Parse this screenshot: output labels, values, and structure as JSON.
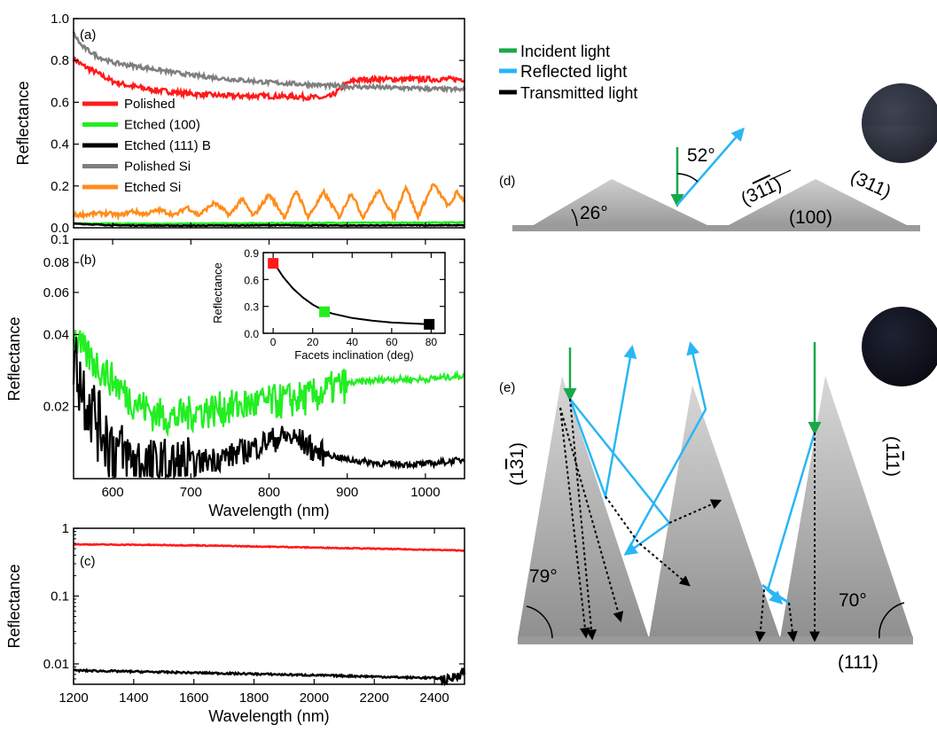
{
  "chart_data": [
    {
      "panel": "(a)",
      "type": "line",
      "xlabel": "",
      "ylabel": "Reflectance",
      "xlim": [
        550,
        1050
      ],
      "ylim": [
        0,
        1.0
      ],
      "yticks": [
        "0.0",
        "0.2",
        "0.4",
        "0.6",
        "0.8",
        "1.0"
      ],
      "series": [
        {
          "name": "Polished",
          "color": "#ff1a1a",
          "x": [
            550,
            560,
            580,
            600,
            620,
            650,
            700,
            750,
            800,
            850,
            870,
            880,
            890,
            900,
            910,
            930,
            950,
            1000,
            1050
          ],
          "y": [
            0.81,
            0.78,
            0.74,
            0.7,
            0.68,
            0.66,
            0.64,
            0.63,
            0.63,
            0.625,
            0.62,
            0.63,
            0.66,
            0.69,
            0.705,
            0.71,
            0.71,
            0.71,
            0.71
          ]
        },
        {
          "name": "Etched (100)",
          "color": "#22ee22",
          "x": [
            550,
            600,
            700,
            800,
            900,
            1000,
            1050
          ],
          "y": [
            0.02,
            0.02,
            0.02,
            0.022,
            0.024,
            0.025,
            0.026
          ]
        },
        {
          "name": "Etched (111) B",
          "color": "#000000",
          "x": [
            550,
            600,
            700,
            800,
            900,
            1000,
            1050
          ],
          "y": [
            0.02,
            0.012,
            0.01,
            0.012,
            0.011,
            0.012,
            0.012
          ]
        },
        {
          "name": "Polished Si",
          "color": "#7f7f7f",
          "x": [
            550,
            560,
            580,
            600,
            650,
            700,
            750,
            800,
            850,
            900,
            950,
            1000,
            1050
          ],
          "y": [
            0.93,
            0.87,
            0.82,
            0.79,
            0.76,
            0.73,
            0.71,
            0.695,
            0.685,
            0.675,
            0.67,
            0.665,
            0.66
          ]
        },
        {
          "name": "Etched Si",
          "color": "#ff8c1a",
          "x": [
            550,
            570,
            590,
            610,
            625,
            640,
            660,
            680,
            695,
            710,
            730,
            750,
            765,
            780,
            800,
            820,
            835,
            850,
            870,
            890,
            905,
            920,
            940,
            960,
            975,
            990,
            1010,
            1030,
            1040,
            1050
          ],
          "y": [
            0.06,
            0.065,
            0.07,
            0.06,
            0.08,
            0.065,
            0.085,
            0.06,
            0.1,
            0.06,
            0.12,
            0.06,
            0.14,
            0.055,
            0.16,
            0.05,
            0.18,
            0.05,
            0.17,
            0.05,
            0.17,
            0.05,
            0.18,
            0.05,
            0.2,
            0.05,
            0.21,
            0.1,
            0.17,
            0.13
          ]
        }
      ]
    },
    {
      "panel": "(b)",
      "type": "line",
      "xlabel": "Wavelength (nm)",
      "ylabel": "Reflectance",
      "xlim": [
        550,
        1050
      ],
      "ylim": [
        0.01,
        0.1
      ],
      "yscale": "log",
      "yticks": [
        "0.02",
        "0.04",
        "0.06",
        "0.08",
        "0.1"
      ],
      "xticks": [
        "600",
        "700",
        "800",
        "900",
        "1000"
      ],
      "series": [
        {
          "name": "Etched (100)",
          "color": "#22ee22",
          "x": [
            550,
            560,
            580,
            600,
            620,
            650,
            680,
            700,
            750,
            800,
            850,
            870,
            880,
            900,
            950,
            1000,
            1050
          ],
          "y": [
            0.04,
            0.035,
            0.03,
            0.026,
            0.022,
            0.019,
            0.018,
            0.019,
            0.02,
            0.021,
            0.022,
            0.023,
            0.024,
            0.025,
            0.026,
            0.026,
            0.027
          ]
        },
        {
          "name": "Etched (111) B",
          "color": "#000000",
          "x": [
            550,
            560,
            580,
            600,
            620,
            650,
            680,
            700,
            720,
            750,
            780,
            800,
            820,
            840,
            860,
            880,
            900,
            950,
            1000,
            1050
          ],
          "y": [
            0.035,
            0.025,
            0.018,
            0.014,
            0.012,
            0.011,
            0.011,
            0.0115,
            0.012,
            0.0125,
            0.0135,
            0.0145,
            0.015,
            0.0145,
            0.013,
            0.0125,
            0.012,
            0.0115,
            0.0115,
            0.012
          ]
        }
      ]
    },
    {
      "panel": "(b) inset",
      "type": "scatter",
      "xlabel": "Facets inclination (deg)",
      "ylabel": "Reflectance",
      "xlim": [
        -5,
        87
      ],
      "ylim": [
        0,
        0.9
      ],
      "xticks": [
        "0",
        "20",
        "40",
        "60",
        "80"
      ],
      "yticks": [
        "0.0",
        "0.3",
        "0.6",
        "0.9"
      ],
      "points": [
        {
          "x": 0,
          "y": 0.78,
          "color": "#ff1a1a"
        },
        {
          "x": 26,
          "y": 0.24,
          "color": "#22ee22"
        },
        {
          "x": 79,
          "y": 0.1,
          "color": "#000000"
        }
      ],
      "fit": {
        "x": [
          0,
          5,
          10,
          15,
          20,
          26,
          30,
          40,
          50,
          60,
          70,
          79
        ],
        "y": [
          0.8,
          0.63,
          0.5,
          0.4,
          0.32,
          0.25,
          0.22,
          0.17,
          0.14,
          0.12,
          0.11,
          0.1
        ]
      }
    },
    {
      "panel": "(c)",
      "type": "line",
      "xlabel": "Wavelength (nm)",
      "ylabel": "Reflectance",
      "xlim": [
        1200,
        2500
      ],
      "ylim": [
        0.005,
        1
      ],
      "yscale": "log",
      "yticks": [
        "0.01",
        "0.1",
        "1"
      ],
      "xticks": [
        "1200",
        "1400",
        "1600",
        "1800",
        "2000",
        "2200",
        "2400"
      ],
      "series": [
        {
          "name": "Polished",
          "color": "#ff1a1a",
          "x": [
            1200,
            1400,
            1600,
            1800,
            2000,
            2200,
            2400,
            2500
          ],
          "y": [
            0.58,
            0.57,
            0.56,
            0.54,
            0.52,
            0.5,
            0.48,
            0.47
          ]
        },
        {
          "name": "Etched (111) B",
          "color": "#000000",
          "x": [
            1200,
            1400,
            1600,
            1800,
            2000,
            2200,
            2300,
            2400,
            2450,
            2480,
            2500
          ],
          "y": [
            0.008,
            0.0077,
            0.0074,
            0.0071,
            0.0068,
            0.0065,
            0.0063,
            0.0062,
            0.0058,
            0.0072,
            0.0078
          ]
        }
      ]
    }
  ],
  "legend_a": [
    {
      "label": "Polished",
      "color": "#ff1a1a"
    },
    {
      "label": "Etched (100)",
      "color": "#22ee22"
    },
    {
      "label": "Etched (111) B",
      "color": "#000000"
    },
    {
      "label": "Polished Si",
      "color": "#7f7f7f"
    },
    {
      "label": "Etched Si",
      "color": "#ff8c1a"
    }
  ],
  "diagram": {
    "legend": [
      {
        "label": "Incident light",
        "color": "#1aa84a"
      },
      {
        "label": "Reflected  light",
        "color": "#29b6f6"
      },
      {
        "label": "Transmitted light",
        "color": "#000000"
      }
    ],
    "panel_d": {
      "label": "(d)",
      "angle_base": "26°",
      "angle_reflect": "52°",
      "facet_left": "(311)",
      "facet_right": "(311)",
      "plane": "(100)"
    },
    "panel_e": {
      "label": "(e)",
      "angle_left": "79°",
      "angle_right": "70°",
      "facet_left": "(131)",
      "facet_right": "(111)",
      "plane": "(111)"
    }
  }
}
